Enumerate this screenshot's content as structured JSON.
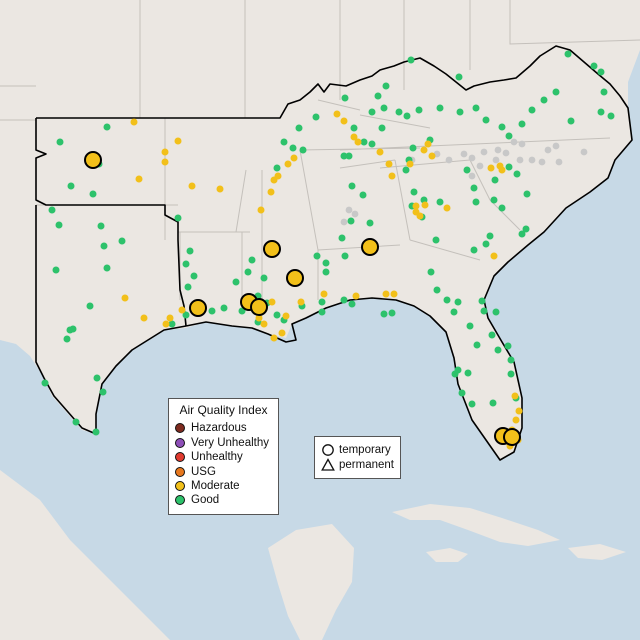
{
  "legend": {
    "title": "Air Quality Index",
    "categories": [
      {
        "label": "Hazardous",
        "color": "#7e2b1f"
      },
      {
        "label": "Very Unhealthy",
        "color": "#8e4fb8"
      },
      {
        "label": "Unhealthy",
        "color": "#e03a2f"
      },
      {
        "label": "USG",
        "color": "#e8781e"
      },
      {
        "label": "Moderate",
        "color": "#f2c01a"
      },
      {
        "label": "Good",
        "color": "#2dc26b"
      }
    ],
    "types": [
      {
        "label": "temporary",
        "shape": "circle"
      },
      {
        "label": "permanent",
        "shape": "triangle"
      }
    ]
  },
  "colors": {
    "ocean": "#c7d9e6",
    "land": "#ebe7e2",
    "boundary": "#000000",
    "inactive_site": "#c8c8c8"
  }
}
